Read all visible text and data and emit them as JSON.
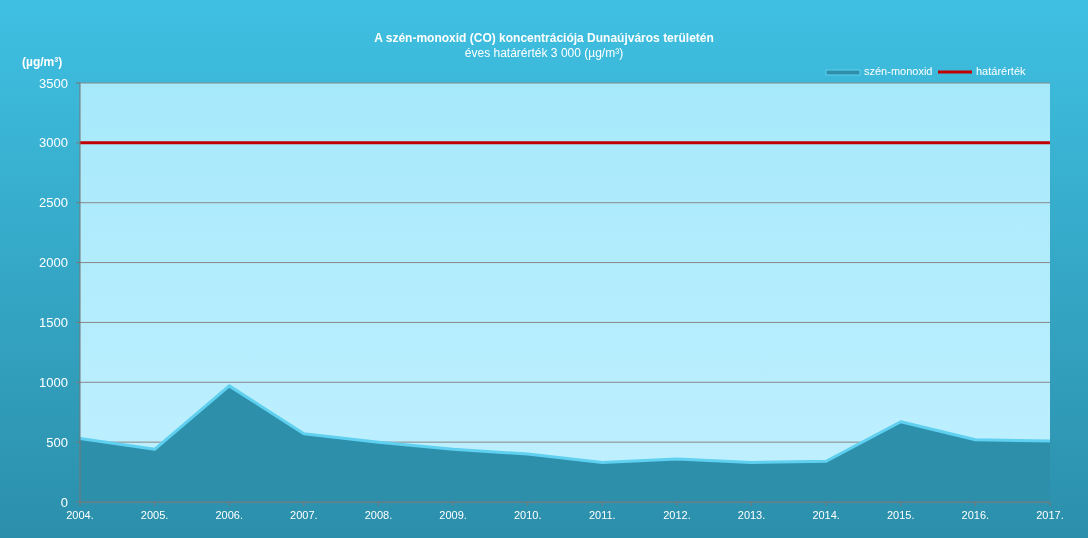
{
  "chart_data": {
    "type": "area",
    "title": "A szén-monoxid (CO) koncentrációja Dunaújváros területén",
    "subtitle": "éves határérték 3 000 (µg/m³)",
    "ylabel": "(µg/m³)",
    "categories": [
      "2004.",
      "2005.",
      "2006.",
      "2007.",
      "2008.",
      "2009.",
      "2010.",
      "2011.",
      "2012.",
      "2013.",
      "2014.",
      "2015.",
      "2016.",
      "2017."
    ],
    "series": [
      {
        "name": "szén-monoxid",
        "color": "#2e8fab",
        "values": [
          530,
          440,
          970,
          570,
          500,
          440,
          400,
          330,
          360,
          330,
          340,
          670,
          520,
          510
        ]
      }
    ],
    "ref_lines": [
      {
        "axis": "y",
        "value": 3000,
        "label": "határérték",
        "color": "#c00000"
      }
    ],
    "ylim": [
      0,
      3500
    ],
    "yticks": [
      0,
      500,
      1000,
      1500,
      2000,
      2500,
      3000,
      3500
    ],
    "grid": "y",
    "legend": "top right"
  }
}
